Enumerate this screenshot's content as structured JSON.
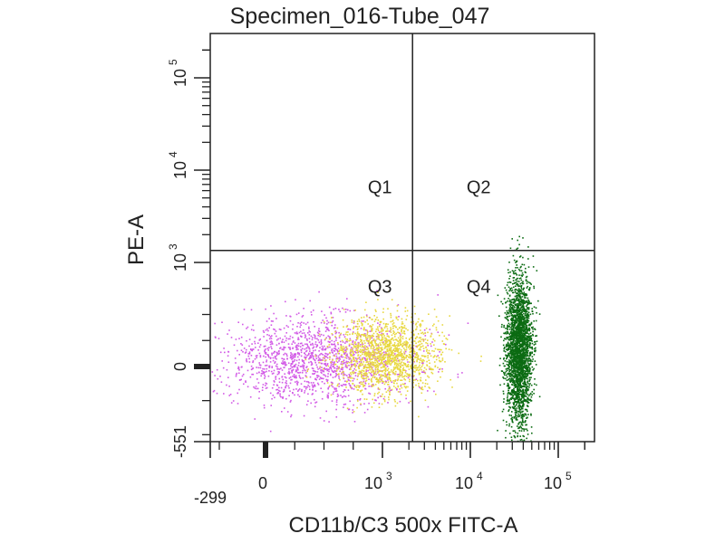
{
  "chart_data": {
    "type": "scatter",
    "title": "Specimen_016-Tube_047",
    "xlabel": "CD11b/C3 500x FITC-A",
    "ylabel": "PE-A",
    "x_scale": "biexponential",
    "y_scale": "biexponential",
    "x_range": [
      -299,
      262144
    ],
    "y_range": [
      -551,
      262144
    ],
    "x_ticks": [
      {
        "label": "-299"
      },
      {
        "label": "0"
      },
      {
        "base": "10",
        "exp": "3"
      },
      {
        "base": "10",
        "exp": "4"
      },
      {
        "base": "10",
        "exp": "5"
      }
    ],
    "y_ticks": [
      {
        "label": "-551"
      },
      {
        "label": "0"
      },
      {
        "base": "10",
        "exp": "3"
      },
      {
        "base": "10",
        "exp": "4"
      },
      {
        "base": "10",
        "exp": "5"
      }
    ],
    "quadrant_gate": {
      "x": 2200,
      "y": 1350
    },
    "quadrants": [
      "Q1",
      "Q2",
      "Q3",
      "Q4"
    ],
    "populations": [
      {
        "color": "#d25ae6",
        "center": [
          420,
          60
        ],
        "spread_decades": [
          0.55,
          0.35
        ]
      },
      {
        "color": "#e8d840",
        "center": [
          1100,
          120
        ],
        "spread_decades": [
          0.5,
          0.3
        ]
      },
      {
        "color": "#0b6b12",
        "center": [
          35000,
          150
        ],
        "spread_decades": [
          0.12,
          0.6
        ]
      }
    ],
    "grid": false,
    "legend": "none"
  }
}
